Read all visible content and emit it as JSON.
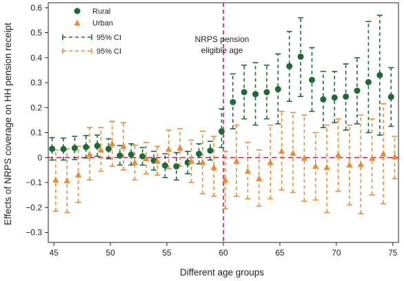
{
  "chart_data": {
    "type": "scatter",
    "xlabel": "Different age groups",
    "ylabel": "Effects of NRPS coverage on HH pension receipt",
    "xlim": [
      44.5,
      75.5
    ],
    "ylim": [
      -0.34,
      0.62
    ],
    "xticks": [
      45,
      50,
      55,
      60,
      65,
      70,
      75
    ],
    "yticks": [
      -0.3,
      -0.2,
      -0.1,
      0,
      0.1,
      0.2,
      0.3,
      0.4,
      0.5,
      0.6
    ],
    "ytick_labels": [
      "−0.3",
      "−0.2",
      "−0.1",
      "0",
      "0.1",
      "0.2",
      "0.3",
      "0.4",
      "0.5",
      "0.6"
    ],
    "grid": false,
    "legend_position": "top-left",
    "legend": [
      "Rural",
      "Urban",
      "95% CI",
      "95% CI"
    ],
    "annotation": {
      "line1": "NRPS pension",
      "line2": "eligible age",
      "x": 60
    },
    "reference_line_y": 0,
    "colors": {
      "rural": "#1a6b34",
      "urban": "#f08a30",
      "zero_line": "#cc2255",
      "cutoff_line": "#cc2255"
    },
    "series": [
      {
        "name": "Rural",
        "x": [
          45,
          46,
          47,
          48,
          49,
          50,
          51,
          52,
          53,
          54,
          55,
          56,
          57,
          58,
          59,
          60,
          61,
          62,
          63,
          64,
          65,
          66,
          67,
          68,
          69,
          70,
          71,
          72,
          73,
          74,
          75
        ],
        "y": [
          0.035,
          0.034,
          0.038,
          0.042,
          0.047,
          0.035,
          0.008,
          0.012,
          0.005,
          -0.012,
          -0.032,
          -0.035,
          -0.02,
          0.015,
          0.028,
          0.105,
          0.222,
          0.262,
          0.254,
          0.262,
          0.274,
          0.366,
          0.404,
          0.311,
          0.233,
          0.24,
          0.244,
          0.268,
          0.302,
          0.33,
          0.243
        ],
        "lower": [
          -0.01,
          -0.01,
          -0.008,
          -0.002,
          0.005,
          -0.005,
          -0.03,
          -0.03,
          -0.03,
          -0.05,
          -0.08,
          -0.09,
          -0.065,
          -0.025,
          -0.01,
          0.04,
          0.115,
          0.155,
          0.13,
          0.155,
          0.135,
          0.225,
          0.245,
          0.185,
          0.12,
          0.14,
          0.11,
          0.135,
          0.1,
          0.09,
          0.125
        ],
        "upper": [
          0.08,
          0.078,
          0.085,
          0.088,
          0.09,
          0.075,
          0.048,
          0.055,
          0.04,
          0.025,
          0.015,
          0.02,
          0.025,
          0.055,
          0.065,
          0.195,
          0.335,
          0.37,
          0.38,
          0.37,
          0.415,
          0.505,
          0.56,
          0.44,
          0.345,
          0.345,
          0.375,
          0.4,
          0.545,
          0.57,
          0.36
        ]
      },
      {
        "name": "Urban",
        "x": [
          45,
          46,
          47,
          48,
          49,
          50,
          51,
          52,
          53,
          54,
          55,
          56,
          57,
          58,
          59,
          60,
          61,
          62,
          63,
          64,
          65,
          66,
          67,
          68,
          69,
          70,
          71,
          72,
          73,
          74,
          75
        ],
        "y": [
          -0.09,
          -0.093,
          -0.07,
          0.013,
          0.03,
          0.055,
          0.045,
          -0.02,
          -0.005,
          -0.015,
          0.033,
          0.038,
          -0.015,
          -0.02,
          -0.04,
          -0.09,
          -0.015,
          -0.055,
          -0.085,
          -0.02,
          0.025,
          0.017,
          -0.003,
          -0.035,
          -0.04,
          0.01,
          -0.03,
          -0.028,
          -0.003,
          0.015,
          0.003
        ],
        "lower": [
          -0.215,
          -0.22,
          -0.18,
          -0.09,
          -0.055,
          -0.035,
          -0.05,
          -0.09,
          -0.065,
          -0.07,
          -0.045,
          -0.035,
          -0.1,
          -0.145,
          -0.155,
          -0.205,
          -0.155,
          -0.165,
          -0.195,
          -0.165,
          -0.13,
          -0.14,
          -0.175,
          -0.17,
          -0.22,
          -0.135,
          -0.19,
          -0.225,
          -0.15,
          -0.185,
          -0.085
        ],
        "upper": [
          0.03,
          0.035,
          0.045,
          0.12,
          0.12,
          0.145,
          0.14,
          0.05,
          0.06,
          0.045,
          0.11,
          0.115,
          0.07,
          0.105,
          0.085,
          0.025,
          0.13,
          0.06,
          0.03,
          0.13,
          0.185,
          0.18,
          0.17,
          0.1,
          0.13,
          0.155,
          0.13,
          0.17,
          0.155,
          0.215,
          0.085
        ]
      }
    ]
  }
}
